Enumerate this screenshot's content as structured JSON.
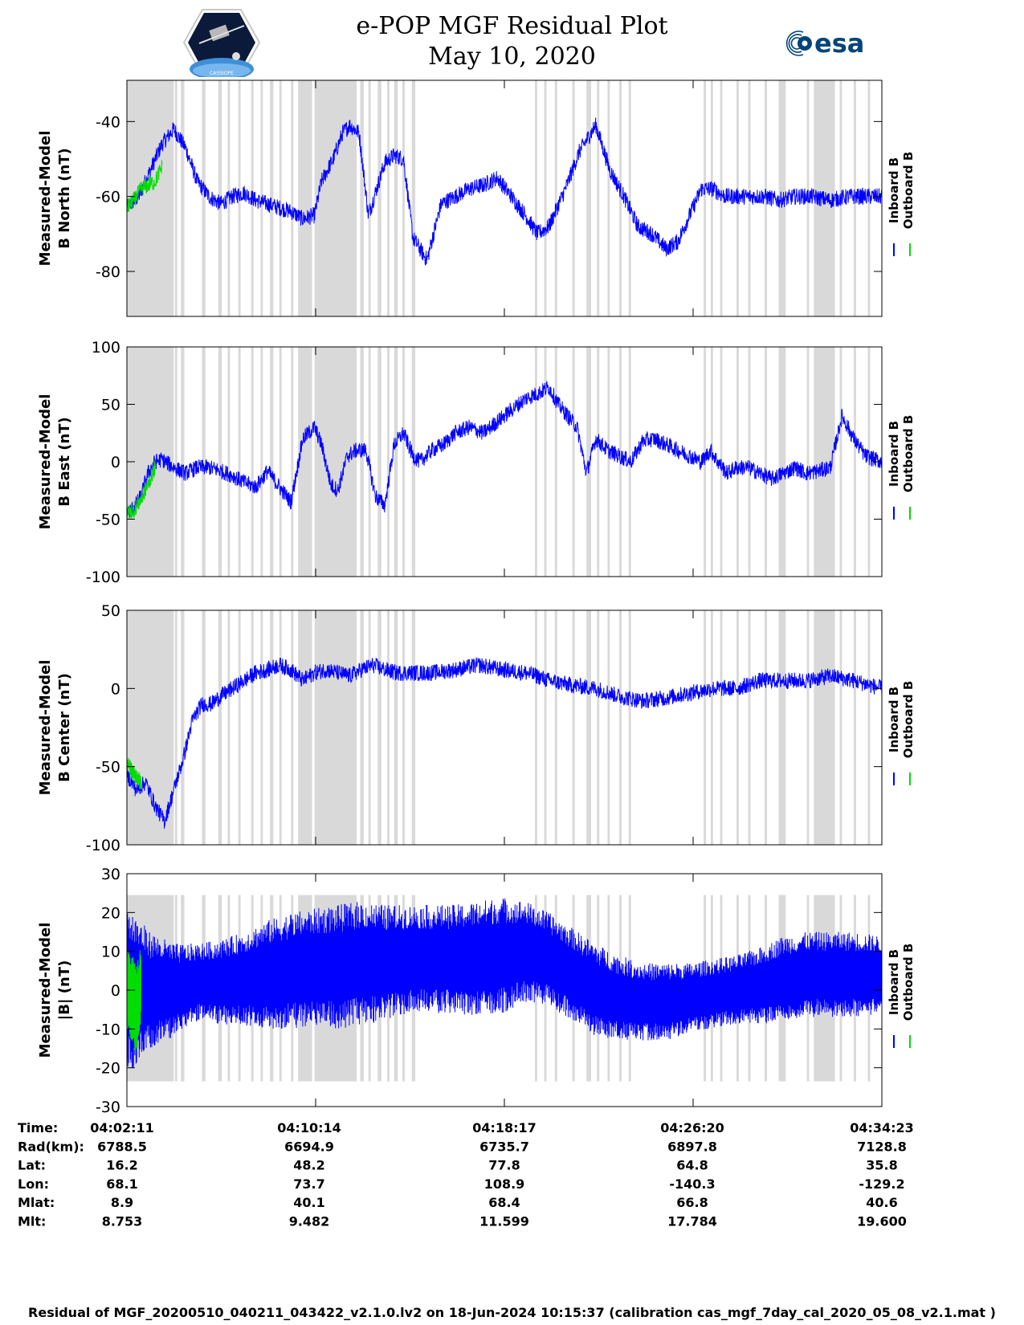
{
  "title_line1": "e-POP MGF Residual Plot",
  "title_line2": "May 10, 2020",
  "logos": {
    "left": "cassiope-mission-logo",
    "left_text": "CASSIOPE",
    "right": "esa-logo",
    "right_text": "esa"
  },
  "colors": {
    "inboard": "#0000ff",
    "outboard": "#00dd00",
    "shade": "#d9d9d9"
  },
  "chart_data": [
    {
      "type": "line",
      "panel": "B North",
      "ylabel_lines": [
        "Measured-Model",
        "B North (nT)"
      ],
      "yticks": [
        -40,
        -60,
        -80
      ],
      "ylim": [
        -92,
        -29
      ],
      "legend": [
        "Inboard B",
        "Outboard B"
      ],
      "series": [
        {
          "name": "Inboard B",
          "color": "#0000ff",
          "x": [
            0,
            0.5,
            1.0,
            1.5,
            2.0,
            2.5,
            3.0,
            3.5,
            4.0,
            4.5,
            5.0,
            5.5,
            6.0,
            6.5,
            7.0,
            7.5,
            8.0,
            8.3,
            8.8,
            9.2,
            9.5,
            9.9,
            10.3,
            10.7,
            11.0,
            11.4,
            11.8,
            12.2,
            12.8,
            13.4,
            14.0,
            14.6,
            15.2,
            15.8,
            16.4,
            17.0,
            17.5,
            18.0,
            18.7,
            19.3,
            20.0,
            20.6,
            21.2,
            21.8,
            22.4,
            23.0,
            23.5,
            24.0,
            24.5,
            25.0,
            25.5,
            26.0,
            26.6,
            27.2,
            27.8,
            28.5,
            29.2,
            30.0,
            30.8,
            31.6,
            32.2
          ],
          "y": [
            -63,
            -60,
            -53,
            -46,
            -42,
            -47,
            -56,
            -60,
            -62,
            -60,
            -59,
            -61,
            -62,
            -63,
            -64,
            -66,
            -65,
            -56,
            -50,
            -43,
            -41,
            -43,
            -65,
            -57,
            -51,
            -49,
            -50,
            -71,
            -77,
            -62,
            -60,
            -58,
            -57,
            -55,
            -60,
            -65,
            -70,
            -68,
            -58,
            -48,
            -41,
            -53,
            -60,
            -68,
            -70,
            -74,
            -72,
            -65,
            -58,
            -58,
            -60,
            -60,
            -60,
            -60,
            -61,
            -60,
            -60,
            -61,
            -60,
            -60,
            -60
          ]
        },
        {
          "name": "Outboard B",
          "color": "#00dd00",
          "x": [
            0,
            0.3,
            0.6,
            0.9,
            1.2,
            1.5
          ],
          "y": [
            -63,
            -61,
            -58,
            -57,
            -56,
            -52
          ]
        }
      ]
    },
    {
      "type": "line",
      "panel": "B East",
      "ylabel_lines": [
        "Measured-Model",
        "B East (nT)"
      ],
      "yticks": [
        100,
        50,
        0,
        -50,
        -100
      ],
      "ylim": [
        -100,
        100
      ],
      "legend": [
        "Inboard B",
        "Outboard B"
      ],
      "series": [
        {
          "name": "Inboard B",
          "color": "#0000ff",
          "x": [
            0,
            0.3,
            0.6,
            0.9,
            1.2,
            1.5,
            2.0,
            2.5,
            3.0,
            3.5,
            4.0,
            4.5,
            5.0,
            5.5,
            6.0,
            6.5,
            7.0,
            7.5,
            8.0,
            8.3,
            8.7,
            9.0,
            9.4,
            9.8,
            10.2,
            10.6,
            11.0,
            11.4,
            11.8,
            12.2,
            12.5,
            13.0,
            13.5,
            14.0,
            14.6,
            15.2,
            15.8,
            16.4,
            17.0,
            17.6,
            18.0,
            18.4,
            18.8,
            19.2,
            19.6,
            20.0,
            20.5,
            21.0,
            21.5,
            22.0,
            22.5,
            23.0,
            23.5,
            24.0,
            24.5,
            24.9,
            25.2,
            25.6,
            26.0,
            26.5,
            27.0,
            27.5,
            28.0,
            28.5,
            29.0,
            29.5,
            30.0,
            30.5,
            31.0,
            31.5,
            32.2
          ],
          "y": [
            -45,
            -40,
            -30,
            -10,
            0,
            2,
            -5,
            -10,
            -5,
            -5,
            -8,
            -12,
            -18,
            -22,
            -8,
            -22,
            -35,
            20,
            30,
            15,
            -20,
            -25,
            5,
            10,
            10,
            -30,
            -38,
            15,
            25,
            5,
            0,
            10,
            15,
            25,
            30,
            25,
            35,
            45,
            55,
            60,
            65,
            50,
            40,
            30,
            -10,
            20,
            10,
            5,
            0,
            18,
            20,
            15,
            10,
            5,
            0,
            10,
            0,
            -10,
            -5,
            -5,
            -10,
            -15,
            -10,
            -5,
            -10,
            -8,
            -5,
            40,
            20,
            5,
            0
          ]
        },
        {
          "name": "Outboard B",
          "color": "#00dd00",
          "x": [
            0,
            0.3,
            0.6,
            0.9,
            1.2
          ],
          "y": [
            -45,
            -42,
            -33,
            -20,
            -5
          ]
        }
      ]
    },
    {
      "type": "line",
      "panel": "B Center",
      "ylabel_lines": [
        "Measured-Model",
        "B Center (nT)"
      ],
      "yticks": [
        50,
        0,
        -50,
        -100
      ],
      "ylim": [
        -100,
        50
      ],
      "legend": [
        "Inboard B",
        "Outboard B"
      ],
      "series": [
        {
          "name": "Inboard B",
          "color": "#0000ff",
          "x": [
            0,
            0.4,
            0.8,
            1.2,
            1.6,
            2.0,
            2.4,
            2.8,
            3.2,
            3.6,
            4.0,
            4.5,
            5.0,
            5.5,
            6.0,
            6.5,
            7.0,
            7.5,
            8.0,
            8.5,
            9.0,
            9.5,
            10.0,
            10.5,
            11.0,
            11.5,
            12.0,
            12.5,
            13.0,
            14.0,
            15.0,
            16.0,
            17.0,
            17.5,
            18.0,
            19.0,
            20.0,
            21.0,
            22.0,
            23.0,
            24.0,
            25.0,
            26.0,
            27.0,
            28.0,
            29.0,
            30.0,
            31.0,
            32.2
          ],
          "y": [
            -55,
            -65,
            -60,
            -75,
            -85,
            -65,
            -45,
            -20,
            -10,
            -10,
            -5,
            0,
            5,
            10,
            12,
            15,
            12,
            5,
            10,
            12,
            10,
            8,
            12,
            15,
            12,
            10,
            10,
            10,
            10,
            12,
            15,
            12,
            10,
            8,
            5,
            2,
            0,
            -5,
            -8,
            -6,
            -3,
            0,
            0,
            5,
            5,
            5,
            8,
            5,
            0
          ]
        },
        {
          "name": "Outboard B",
          "color": "#00dd00",
          "x": [
            0,
            0.3,
            0.6
          ],
          "y": [
            -48,
            -55,
            -60
          ]
        }
      ]
    },
    {
      "type": "line",
      "panel": "|B|",
      "ylabel_lines": [
        "Measured-Model",
        "|B| (nT)"
      ],
      "yticks": [
        30,
        20,
        10,
        0,
        -10,
        -20,
        -30
      ],
      "ylim": [
        -30,
        30
      ],
      "legend": [
        "Inboard B",
        "Outboard B"
      ],
      "series": [
        {
          "name": "Inboard B",
          "color": "#0000ff",
          "x": [
            0,
            1,
            2,
            3,
            4,
            5,
            6,
            7,
            8,
            9,
            10,
            11,
            12,
            13,
            14,
            15,
            16,
            17,
            18,
            19,
            20,
            21,
            22,
            23,
            24,
            25,
            26,
            27,
            28,
            29,
            30,
            31,
            32.2
          ],
          "y": [
            0,
            0,
            0,
            2,
            2,
            3,
            4,
            5,
            6,
            6,
            7,
            7,
            8,
            8,
            8,
            8,
            9,
            10,
            8,
            4,
            0,
            -2,
            -3,
            -3,
            -2,
            -1,
            0,
            1,
            3,
            4,
            4,
            4,
            4
          ],
          "amplitude": [
            22,
            15,
            12,
            10,
            11,
            12,
            14,
            15,
            15,
            16,
            16,
            15,
            14,
            14,
            14,
            15,
            15,
            13,
            12,
            12,
            12,
            11,
            10,
            10,
            9,
            9,
            9,
            10,
            11,
            11,
            11,
            11,
            10
          ]
        },
        {
          "name": "Outboard B",
          "color": "#00dd00",
          "x": [
            0,
            0.2,
            0.4,
            0.6
          ],
          "y": [
            0,
            -2,
            -5,
            2
          ],
          "amplitude": [
            10,
            12,
            12,
            10
          ]
        }
      ]
    }
  ],
  "x_axis": {
    "unit": "minutes from 04:02:11",
    "xlim": [
      0,
      32.2
    ],
    "ticks": [
      0,
      8.05,
      16.1,
      24.15,
      32.2
    ]
  },
  "shaded_intervals": [
    [
      0,
      2.0
    ],
    [
      2.05,
      2.15
    ],
    [
      2.3,
      2.45
    ],
    [
      3.2,
      3.35
    ],
    [
      3.9,
      4.05
    ],
    [
      4.3,
      4.4
    ],
    [
      4.75,
      4.85
    ],
    [
      5.3,
      5.4
    ],
    [
      5.7,
      5.8
    ],
    [
      6.1,
      6.25
    ],
    [
      6.5,
      6.6
    ],
    [
      7.0,
      7.1
    ],
    [
      7.3,
      7.9
    ],
    [
      8.0,
      9.8
    ],
    [
      9.95,
      10.1
    ],
    [
      10.3,
      10.4
    ],
    [
      10.7,
      10.85
    ],
    [
      11.1,
      11.2
    ],
    [
      11.4,
      11.55
    ],
    [
      11.75,
      11.85
    ],
    [
      12.15,
      12.3
    ],
    [
      17.4,
      17.5
    ],
    [
      17.8,
      17.9
    ],
    [
      18.25,
      18.35
    ],
    [
      19.0,
      19.1
    ],
    [
      19.6,
      19.8
    ],
    [
      20.05,
      20.15
    ],
    [
      20.5,
      20.6
    ],
    [
      21.0,
      21.1
    ],
    [
      21.4,
      21.5
    ],
    [
      24.6,
      24.7
    ],
    [
      24.9,
      25.0
    ],
    [
      25.3,
      25.4
    ],
    [
      26.0,
      26.1
    ],
    [
      26.5,
      26.6
    ],
    [
      27.2,
      27.3
    ],
    [
      27.8,
      28.1
    ],
    [
      29.0,
      29.1
    ],
    [
      29.3,
      30.2
    ],
    [
      30.4,
      30.5
    ],
    [
      31.0,
      31.1
    ],
    [
      31.6,
      31.7
    ]
  ],
  "footer_table": {
    "row_labels": [
      "Time:",
      "Rad(km):",
      "Lat:",
      "Lon:",
      "Mlat:",
      "Mlt:"
    ],
    "columns": [
      [
        "04:02:11",
        "6788.5",
        "16.2",
        "68.1",
        "8.9",
        "8.753"
      ],
      [
        "04:10:14",
        "6694.9",
        "48.2",
        "73.7",
        "40.1",
        "9.482"
      ],
      [
        "04:18:17",
        "6735.7",
        "77.8",
        "108.9",
        "68.4",
        "11.599"
      ],
      [
        "04:26:20",
        "6897.8",
        "64.8",
        "-140.3",
        "66.8",
        "17.784"
      ],
      [
        "04:34:23",
        "7128.8",
        "35.8",
        "-129.2",
        "40.6",
        "19.600"
      ]
    ]
  },
  "footer_note": "Residual of MGF_20200510_040211_043422_v2.1.0.lv2 on 18-Jun-2024 10:15:37 (calibration cas_mgf_7day_cal_2020_05_08_v2.1.mat )"
}
